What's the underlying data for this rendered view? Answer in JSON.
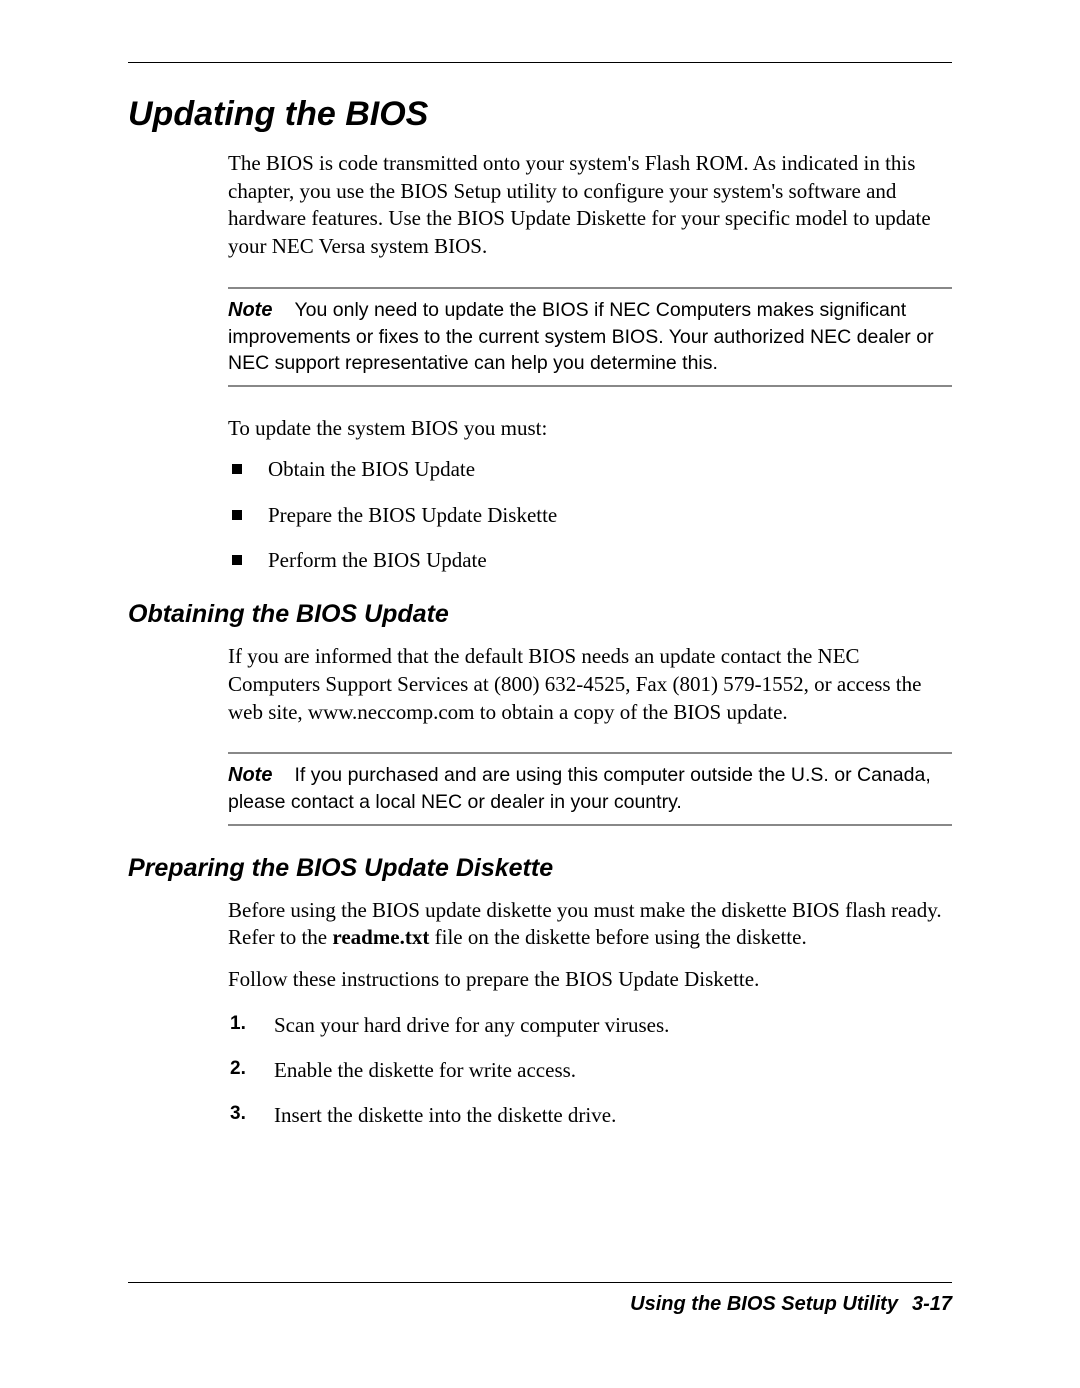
{
  "title": "Updating the BIOS",
  "intro": "The BIOS is code transmitted onto your system's Flash ROM. As indicated in this chapter, you use the BIOS Setup utility to configure your system's software and hardware features. Use the BIOS Update Diskette for your specific model to update your NEC Versa system BIOS.",
  "note1": {
    "label": "Note",
    "text": "You only need to update the BIOS if NEC Computers makes significant improvements or fixes to the current system BIOS. Your authorized NEC dealer or NEC support representative can help you determine this."
  },
  "lead_in": "To update the system BIOS you must:",
  "bullets": [
    "Obtain the BIOS Update",
    "Prepare the BIOS Update Diskette",
    "Perform the BIOS Update"
  ],
  "section_obtain": {
    "heading": "Obtaining the BIOS Update",
    "body": "If you are informed that the default BIOS needs an update contact the NEC Computers Support Services at (800) 632-4525, Fax (801) 579-1552, or access the web site, www.neccomp.com to obtain a copy of the BIOS update."
  },
  "note2": {
    "label": "Note",
    "text": "If you purchased and are using this computer outside the U.S. or Canada, please contact a local NEC or dealer in your country."
  },
  "section_prepare": {
    "heading": "Preparing the BIOS Update Diskette",
    "body_pre": "Before using the BIOS update diskette you must make the diskette BIOS flash ready. Refer to the ",
    "body_bold": "readme.txt",
    "body_post": " file on the diskette before using the diskette.",
    "follow": "Follow these instructions to prepare the BIOS Update Diskette.",
    "steps": [
      "Scan your hard drive for any computer viruses.",
      "Enable the diskette for write access.",
      "Insert the diskette into the diskette drive."
    ]
  },
  "footer": {
    "title": "Using the BIOS Setup Utility",
    "page": "3-17"
  },
  "colors": {
    "text": "#000000",
    "rule_gray": "#888888",
    "background": "#ffffff"
  },
  "typography": {
    "body_font": "Times New Roman",
    "heading_font": "Arial",
    "title_size_pt": 26,
    "subheading_size_pt": 19,
    "body_size_pt": 16,
    "note_size_pt": 15,
    "footer_size_pt": 15
  }
}
